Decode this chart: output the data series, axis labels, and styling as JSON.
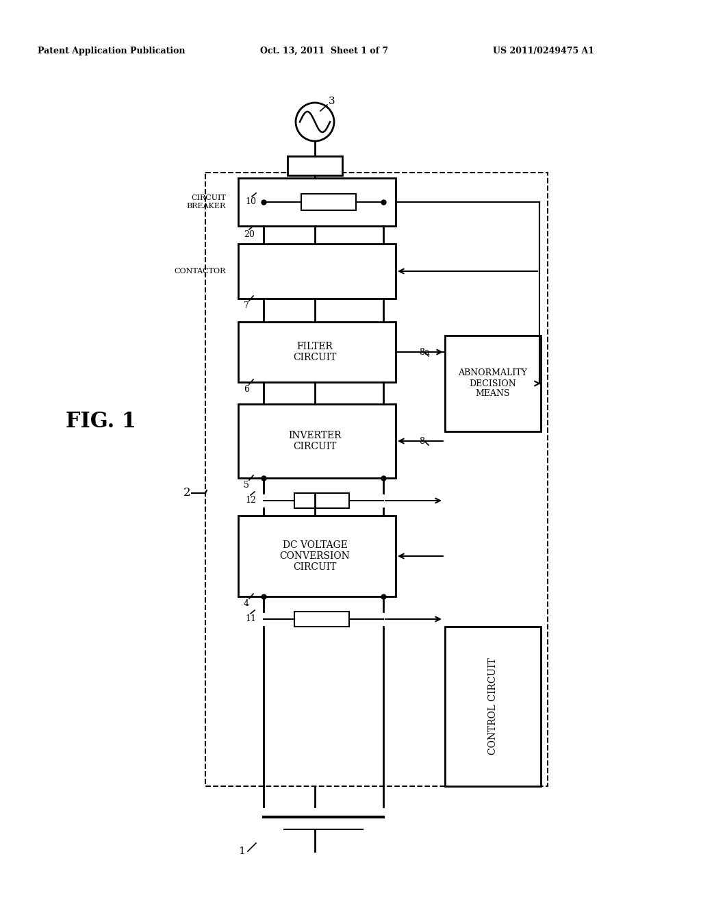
{
  "header_left": "Patent Application Publication",
  "header_center": "Oct. 13, 2011  Sheet 1 of 7",
  "header_right": "US 2011/0249475 A1",
  "bg_color": "#ffffff",
  "fig_label": "FIG. 1",
  "label_1": "1",
  "label_2": "2",
  "label_3": "3",
  "label_4": "4",
  "label_5": "5",
  "label_6": "6",
  "label_7": "7",
  "label_8": "8",
  "label_8a": "8a",
  "label_10": "10",
  "label_11": "11",
  "label_12": "12",
  "label_20": "20",
  "circuit_breaker_label": "CIRCUIT\nBREAKER",
  "contactor_label": "CONTACTOR",
  "filter_circuit_label": "FILTER\nCIRCUIT",
  "inverter_circuit_label": "INVERTER\nCIRCUIT",
  "dc_voltage_label": "DC VOLTAGE\nCONVERSION\nCIRCUIT",
  "control_circuit_label": "CONTROL CIRCUIT",
  "abnormality_label": "ABNORMALITY\nDECISION\nMEANS"
}
